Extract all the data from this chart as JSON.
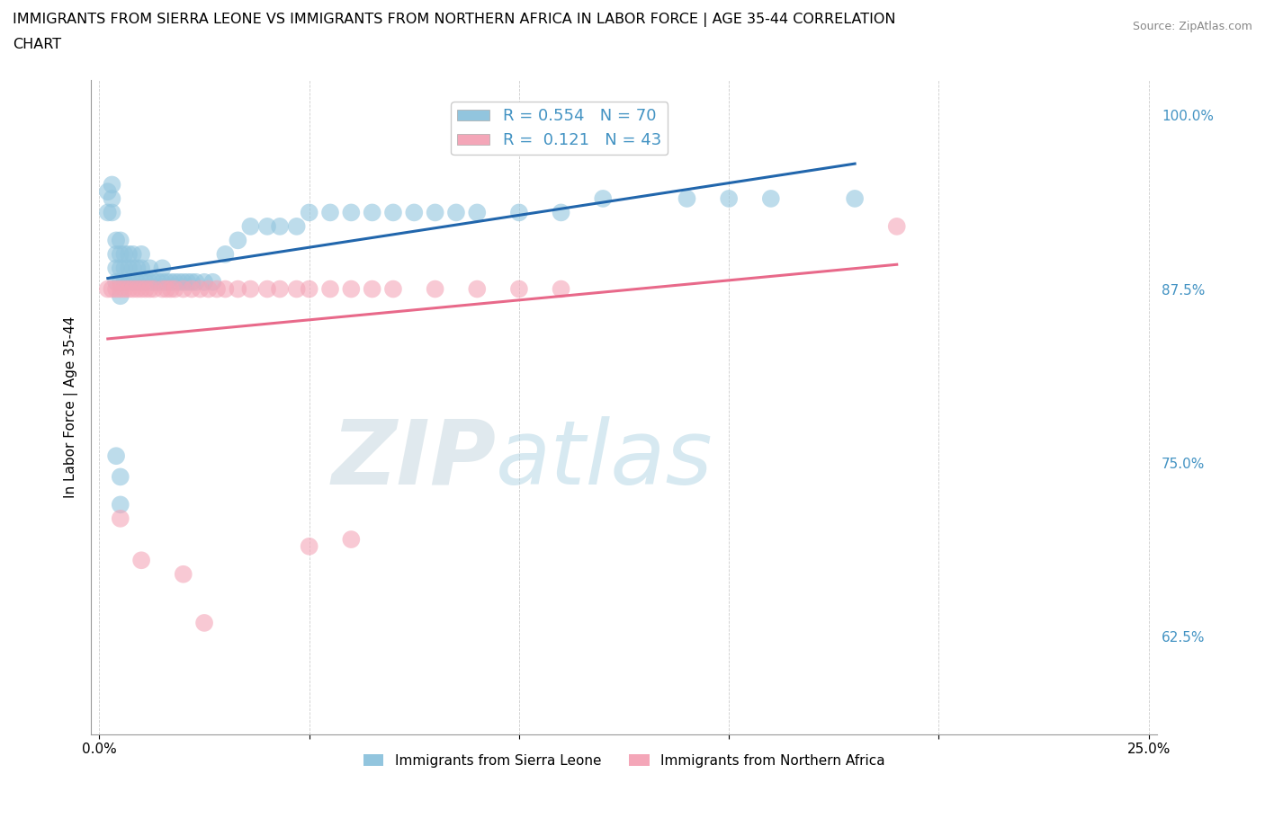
{
  "title_line1": "IMMIGRANTS FROM SIERRA LEONE VS IMMIGRANTS FROM NORTHERN AFRICA IN LABOR FORCE | AGE 35-44 CORRELATION",
  "title_line2": "CHART",
  "source": "Source: ZipAtlas.com",
  "ylabel": "In Labor Force | Age 35-44",
  "xlim": [
    -0.002,
    0.252
  ],
  "ylim": [
    0.555,
    1.025
  ],
  "right_yticks": [
    1.0,
    0.875,
    0.75,
    0.625
  ],
  "right_yticklabels": [
    "100.0%",
    "87.5%",
    "75.0%",
    "62.5%"
  ],
  "xticks": [
    0.0,
    0.05,
    0.1,
    0.15,
    0.2,
    0.25
  ],
  "xticklabels": [
    "0.0%",
    "",
    "",
    "",
    "",
    "25.0%"
  ],
  "legend_r1": "R = 0.554",
  "legend_n1": "N = 70",
  "legend_r2": "R =  0.121",
  "legend_n2": "N = 43",
  "color_blue": "#92c5de",
  "color_pink": "#f4a6b8",
  "color_blue_line": "#2166ac",
  "color_pink_line": "#e8698a",
  "color_blue_text": "#4393c3",
  "sl_x": [
    0.002,
    0.002,
    0.003,
    0.003,
    0.003,
    0.004,
    0.004,
    0.004,
    0.004,
    0.005,
    0.005,
    0.005,
    0.005,
    0.005,
    0.006,
    0.006,
    0.006,
    0.007,
    0.007,
    0.007,
    0.008,
    0.008,
    0.008,
    0.009,
    0.009,
    0.01,
    0.01,
    0.01,
    0.011,
    0.012,
    0.012,
    0.013,
    0.014,
    0.015,
    0.015,
    0.016,
    0.017,
    0.018,
    0.019,
    0.02,
    0.021,
    0.022,
    0.023,
    0.025,
    0.027,
    0.03,
    0.033,
    0.036,
    0.04,
    0.043,
    0.047,
    0.05,
    0.055,
    0.06,
    0.065,
    0.07,
    0.075,
    0.08,
    0.085,
    0.09,
    0.1,
    0.11,
    0.12,
    0.14,
    0.15,
    0.16,
    0.18,
    0.004,
    0.005,
    0.005
  ],
  "sl_y": [
    0.93,
    0.945,
    0.93,
    0.94,
    0.95,
    0.88,
    0.89,
    0.9,
    0.91,
    0.87,
    0.88,
    0.89,
    0.9,
    0.91,
    0.88,
    0.89,
    0.9,
    0.88,
    0.89,
    0.9,
    0.88,
    0.89,
    0.9,
    0.88,
    0.89,
    0.88,
    0.89,
    0.9,
    0.88,
    0.88,
    0.89,
    0.88,
    0.88,
    0.88,
    0.89,
    0.88,
    0.88,
    0.88,
    0.88,
    0.88,
    0.88,
    0.88,
    0.88,
    0.88,
    0.88,
    0.9,
    0.91,
    0.92,
    0.92,
    0.92,
    0.92,
    0.93,
    0.93,
    0.93,
    0.93,
    0.93,
    0.93,
    0.93,
    0.93,
    0.93,
    0.93,
    0.93,
    0.94,
    0.94,
    0.94,
    0.94,
    0.94,
    0.755,
    0.72,
    0.74
  ],
  "na_x": [
    0.002,
    0.003,
    0.004,
    0.005,
    0.006,
    0.007,
    0.008,
    0.009,
    0.01,
    0.011,
    0.012,
    0.013,
    0.015,
    0.016,
    0.017,
    0.018,
    0.02,
    0.022,
    0.024,
    0.026,
    0.028,
    0.03,
    0.033,
    0.036,
    0.04,
    0.043,
    0.047,
    0.05,
    0.055,
    0.06,
    0.065,
    0.07,
    0.08,
    0.09,
    0.1,
    0.11,
    0.19,
    0.005,
    0.01,
    0.02,
    0.025,
    0.05,
    0.06
  ],
  "na_y": [
    0.875,
    0.875,
    0.875,
    0.875,
    0.875,
    0.875,
    0.875,
    0.875,
    0.875,
    0.875,
    0.875,
    0.875,
    0.875,
    0.875,
    0.875,
    0.875,
    0.875,
    0.875,
    0.875,
    0.875,
    0.875,
    0.875,
    0.875,
    0.875,
    0.875,
    0.875,
    0.875,
    0.875,
    0.875,
    0.875,
    0.875,
    0.875,
    0.875,
    0.875,
    0.875,
    0.875,
    0.92,
    0.71,
    0.68,
    0.67,
    0.635,
    0.69,
    0.695
  ]
}
